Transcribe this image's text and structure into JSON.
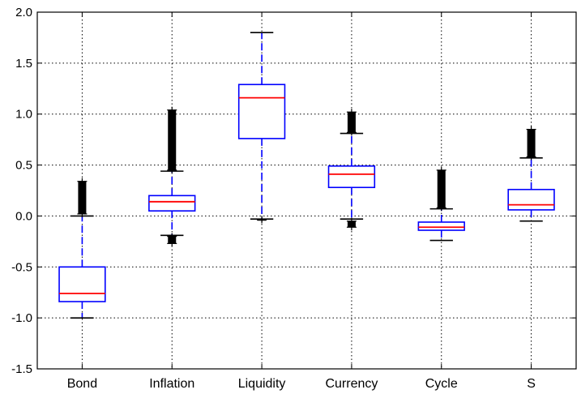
{
  "chart_data": {
    "type": "boxplot",
    "title": "",
    "xlabel": "",
    "ylabel": "",
    "ylim": [
      -1.5,
      2.0
    ],
    "yticks": [
      "-1.5",
      "-1.0",
      "-0.5",
      "0.0",
      "0.5",
      "1.0",
      "1.5",
      "2.0"
    ],
    "grid": true,
    "categories": [
      "Bond",
      "Inflation",
      "Liquidity",
      "Currency",
      "Cycle",
      "S"
    ],
    "boxes": [
      {
        "name": "Bond",
        "whisker_low": -1.0,
        "q1": -0.84,
        "median": -0.76,
        "q3": -0.5,
        "whisker_high": 0.0,
        "outliers_high": [
          0.02,
          0.34
        ],
        "outliers_low": []
      },
      {
        "name": "Inflation",
        "whisker_low": -0.19,
        "q1": 0.05,
        "median": 0.14,
        "q3": 0.2,
        "whisker_high": 0.44,
        "outliers_high": [
          0.45,
          1.04
        ],
        "outliers_low": [
          -0.2,
          -0.27
        ]
      },
      {
        "name": "Liquidity",
        "whisker_low": -0.03,
        "q1": 0.76,
        "median": 1.16,
        "q3": 1.29,
        "whisker_high": 1.8,
        "outliers_high": [],
        "outliers_low": [
          -0.04,
          -0.03
        ]
      },
      {
        "name": "Currency",
        "whisker_low": -0.03,
        "q1": 0.28,
        "median": 0.41,
        "q3": 0.49,
        "whisker_high": 0.81,
        "outliers_high": [
          0.82,
          1.02
        ],
        "outliers_low": [
          -0.05,
          -0.11
        ]
      },
      {
        "name": "Cycle",
        "whisker_low": -0.24,
        "q1": -0.14,
        "median": -0.11,
        "q3": -0.06,
        "whisker_high": 0.07,
        "outliers_high": [
          0.08,
          0.45
        ],
        "outliers_low": []
      },
      {
        "name": "S",
        "whisker_low": -0.05,
        "q1": 0.06,
        "median": 0.11,
        "q3": 0.26,
        "whisker_high": 0.57,
        "outliers_high": [
          0.58,
          0.85
        ],
        "outliers_low": []
      }
    ],
    "colors": {
      "box": "#0000ff",
      "median": "#ff0000",
      "whisker": "#0000ff",
      "cap": "#000000",
      "outlier": "#000000",
      "grid": "#000000"
    }
  }
}
